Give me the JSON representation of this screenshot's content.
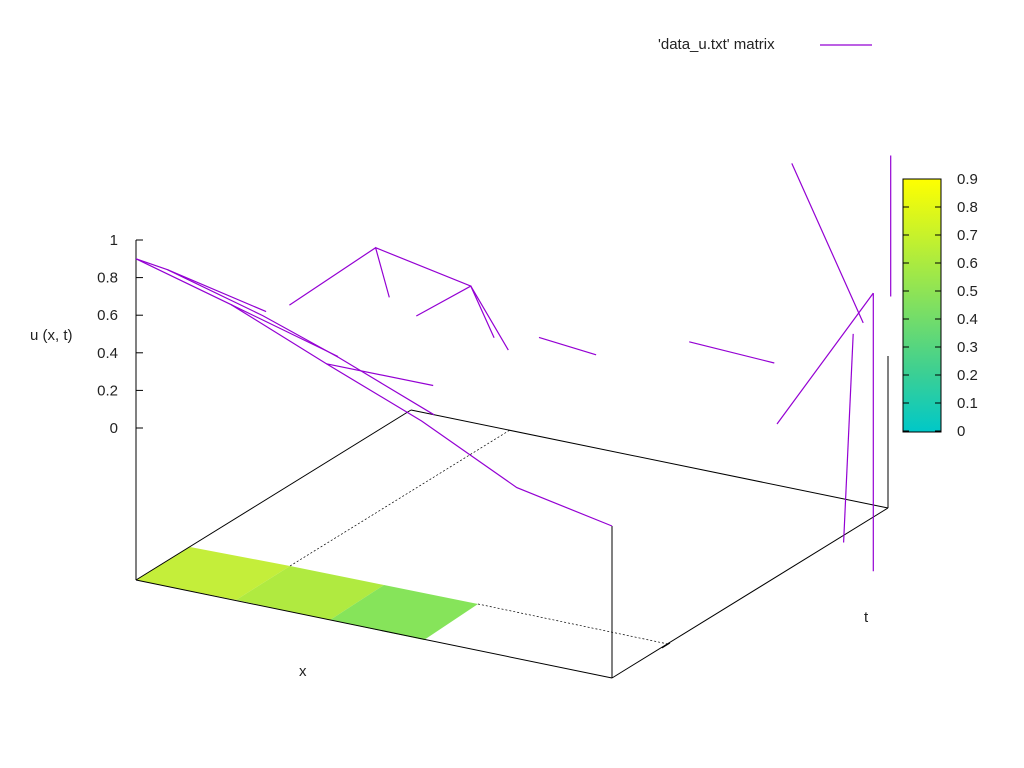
{
  "chart_data": {
    "type": "surface",
    "title": "",
    "xlabel": "x",
    "ylabel": "t",
    "zlabel": "u (x, t)",
    "zlim": [
      0,
      1
    ],
    "z_ticks": [
      "1",
      "0.8",
      "0.6",
      "0.4",
      "0.2",
      "0"
    ],
    "grid": false,
    "legend_placement": "top-right",
    "series": [
      {
        "name": "'data_u.txt' matrix",
        "color": "#9400d3",
        "polylines": [
          [
            [
              0.0,
              0.0,
              0.9
            ],
            [
              0.2,
              0.0,
              0.76
            ],
            [
              0.4,
              0.0,
              0.55
            ],
            [
              0.6,
              0.0,
              0.35
            ],
            [
              0.8,
              0.0,
              0.1
            ],
            [
              1.0,
              0.0,
              0.0
            ]
          ],
          [
            [
              0.02,
              0.08,
              0.78
            ],
            [
              0.22,
              0.08,
              0.64
            ],
            [
              0.38,
              0.08,
              0.5
            ],
            [
              0.58,
              0.08,
              0.3
            ]
          ],
          [
            [
              0.0,
              0.0,
              0.9
            ],
            [
              0.02,
              0.08,
              0.78
            ],
            [
              0.1,
              0.3,
              0.4
            ]
          ],
          [
            [
              0.2,
              0.0,
              0.76
            ],
            [
              0.28,
              0.25,
              0.3
            ]
          ],
          [
            [
              0.4,
              0.0,
              0.55
            ],
            [
              0.48,
              0.25,
              0.25
            ]
          ],
          [
            [
              0.12,
              0.35,
              0.4
            ],
            [
              0.33,
              0.3,
              0.86
            ],
            [
              0.33,
              0.35,
              0.55
            ]
          ],
          [
            [
              0.33,
              0.3,
              0.86
            ],
            [
              0.53,
              0.3,
              0.76
            ],
            [
              0.55,
              0.35,
              0.45
            ]
          ],
          [
            [
              0.3,
              0.5,
              0.3
            ],
            [
              0.53,
              0.3,
              0.76
            ],
            [
              0.58,
              0.35,
              0.4
            ]
          ],
          [
            [
              0.5,
              0.6,
              0.2
            ],
            [
              0.62,
              0.6,
              0.17
            ]
          ],
          [
            [
              0.7,
              0.8,
              0.1
            ],
            [
              0.85,
              0.85,
              0.02
            ]
          ]
        ],
        "spike_lines": [
          [
            [
              0.8,
              1.0,
              0.92
            ],
            [
              0.95,
              1.0,
              0.15
            ]
          ],
          [
            [
              1.0,
              0.6,
              0.0
            ],
            [
              1.0,
              0.95,
              0.38
            ]
          ],
          [
            [
              1.0,
              0.95,
              0.38
            ],
            [
              1.0,
              0.95,
              -1.1
            ]
          ],
          [
            [
              0.95,
              1.1,
              0.95
            ],
            [
              0.95,
              1.1,
              0.2
            ]
          ],
          [
            [
              0.9,
              1.05,
              0.02
            ],
            [
              0.88,
              1.05,
              -1.1
            ]
          ]
        ]
      }
    ],
    "colorbox": {
      "ticks": [
        "0.9",
        "0.8",
        "0.7",
        "0.6",
        "0.5",
        "0.4",
        "0.3",
        "0.2",
        "0.1",
        "0"
      ],
      "range": [
        0,
        0.9
      ],
      "colors": [
        "#00c8c8",
        "#40d090",
        "#80e060",
        "#c0f030",
        "#ffff00"
      ]
    },
    "base_map": [
      {
        "x0": 0.0,
        "x1": 0.25,
        "t0": 0.0,
        "t1": 0.12,
        "value": 0.78
      },
      {
        "x0": 0.25,
        "x1": 0.5,
        "t0": 0.0,
        "t1": 0.12,
        "value": 0.7
      },
      {
        "x0": 0.5,
        "x1": 0.72,
        "t0": 0.0,
        "t1": 0.12,
        "value": 0.58
      }
    ]
  }
}
